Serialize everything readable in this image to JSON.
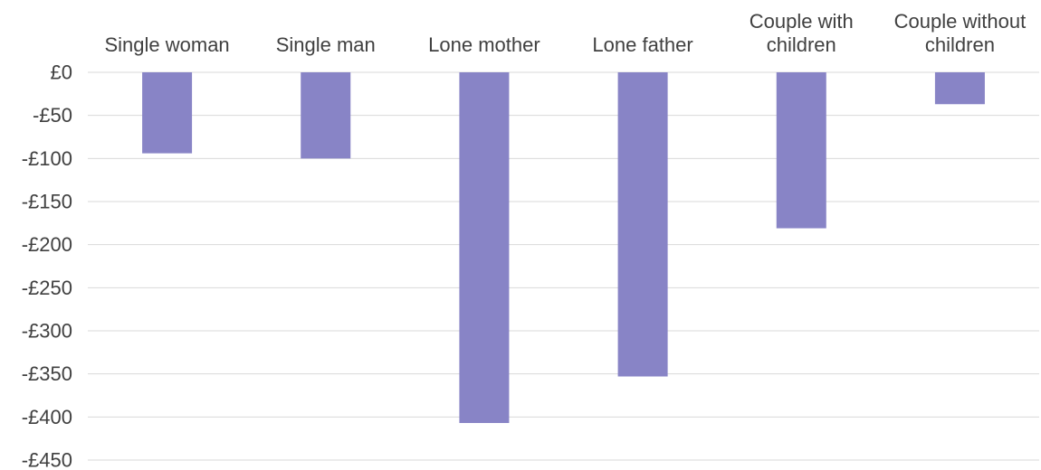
{
  "chart_data": {
    "type": "bar",
    "title": "",
    "xlabel": "",
    "ylabel": "",
    "categories": [
      [
        "Single woman"
      ],
      [
        "Single man"
      ],
      [
        "Lone mother"
      ],
      [
        "Lone father"
      ],
      [
        "Couple with",
        "children"
      ],
      [
        "Couple without",
        "children"
      ]
    ],
    "values": [
      -94,
      -100,
      -407,
      -353,
      -181,
      -37
    ],
    "ylim": [
      -450,
      0
    ],
    "yticks": [
      0,
      -50,
      -100,
      -150,
      -200,
      -250,
      -300,
      -350,
      -400,
      -450
    ],
    "ytick_labels": [
      "£0",
      "-£50",
      "-£100",
      "-£150",
      "-£200",
      "-£250",
      "-£300",
      "-£350",
      "-£400",
      "-£450"
    ],
    "grid": true,
    "legend": "none",
    "bar_color": "#8884c6",
    "grid_color": "#d9d9d9",
    "text_color": "#404040"
  }
}
